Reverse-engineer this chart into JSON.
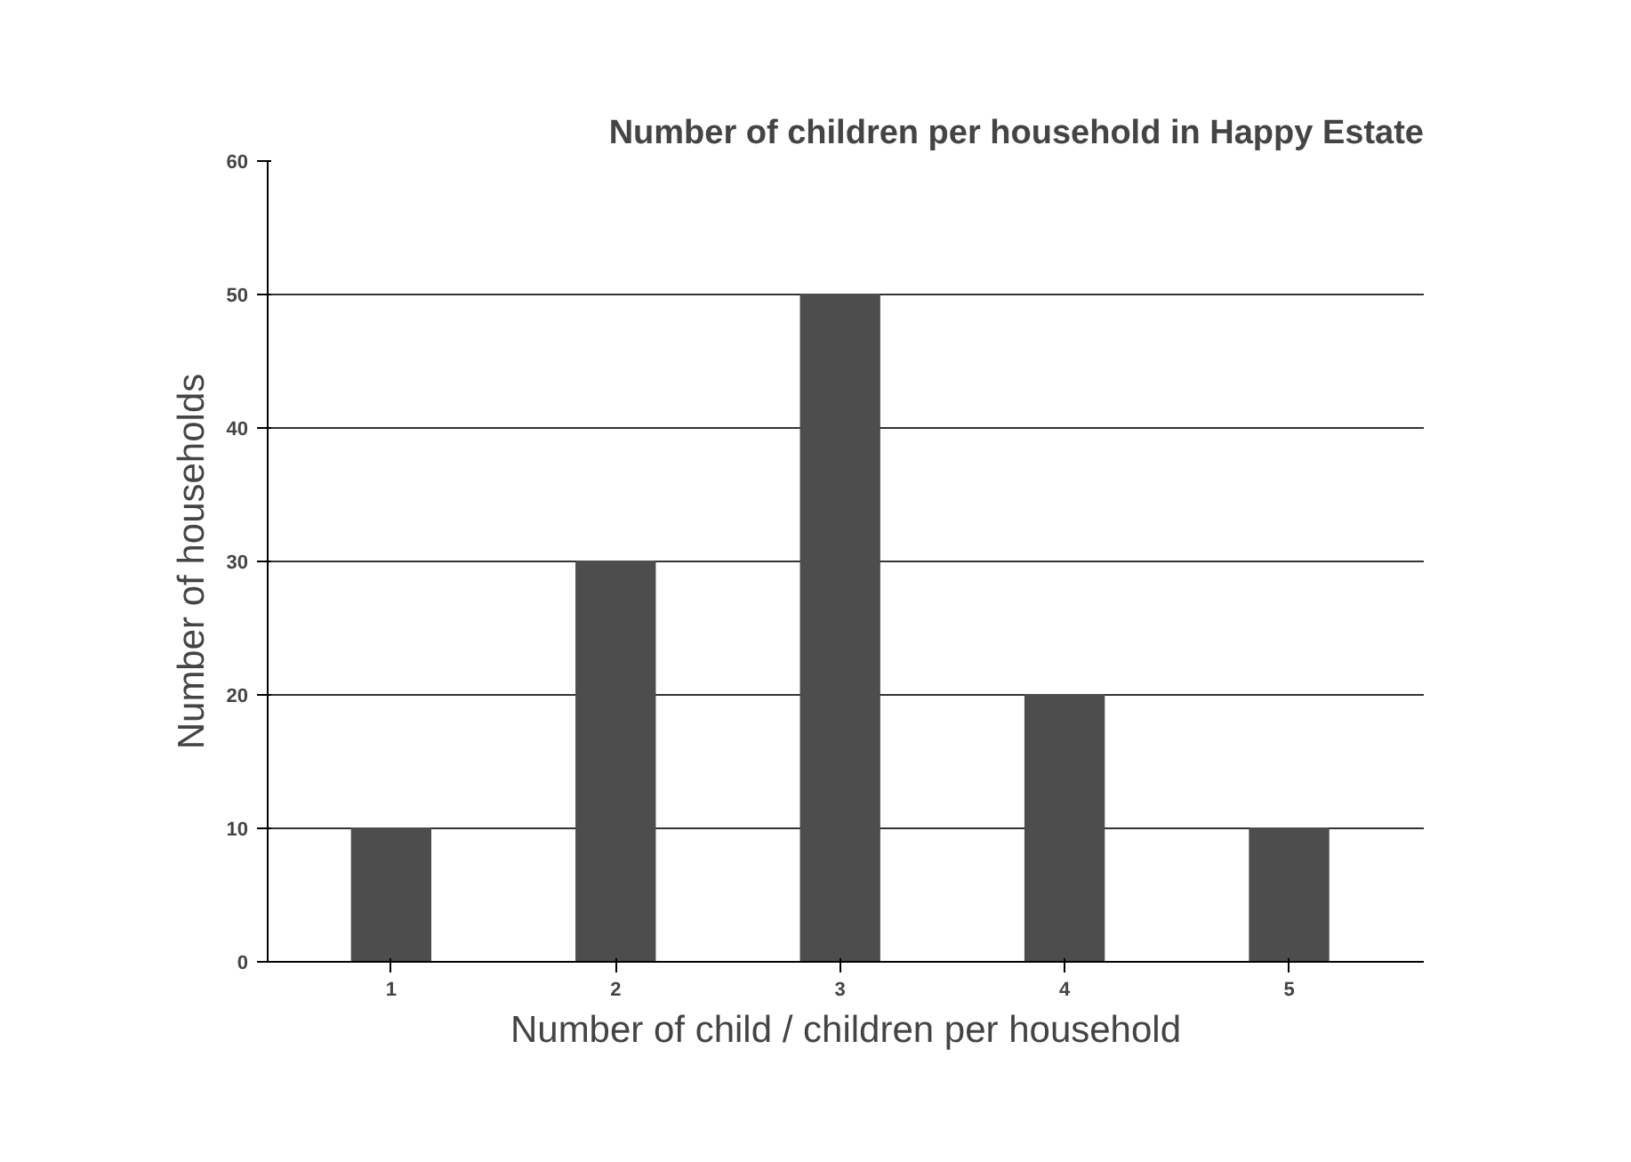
{
  "chart_data": {
    "type": "bar",
    "title": "Number of children per household in Happy Estate",
    "xlabel": "Number of child / children per household",
    "ylabel": "Number of households",
    "categories": [
      "1",
      "2",
      "3",
      "4",
      "5"
    ],
    "values": [
      10,
      30,
      50,
      20,
      10
    ],
    "color": "#4d4d4d",
    "ylim": [
      0,
      60
    ],
    "yticks": [
      0,
      10,
      20,
      30,
      40,
      50,
      60
    ],
    "grid": "y"
  }
}
